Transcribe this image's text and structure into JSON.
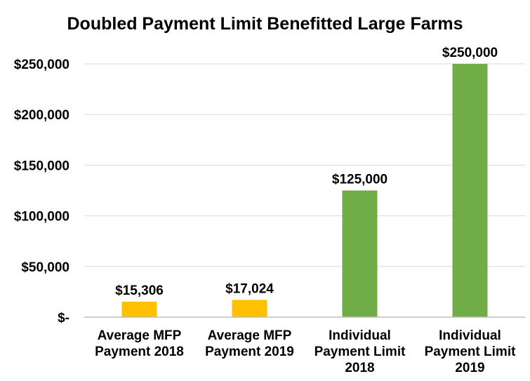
{
  "chart_data": {
    "type": "bar",
    "title": "Doubled Payment Limit Benefitted Large Farms",
    "xlabel": "",
    "ylabel": "",
    "categories": [
      [
        "Average MFP",
        "Payment 2018"
      ],
      [
        "Average  MFP",
        "Payment 2019"
      ],
      [
        "Individual",
        "Payment Limit",
        "2018"
      ],
      [
        "Individual",
        "Payment Limit",
        "2019"
      ]
    ],
    "values": [
      15306,
      17024,
      125000,
      250000
    ],
    "data_labels": [
      "$15,306",
      "$17,024",
      "$125,000",
      "$250,000"
    ],
    "bar_colors": [
      "#FFC000",
      "#FFC000",
      "#70AD47",
      "#70AD47"
    ],
    "ylim": [
      0,
      250000
    ],
    "y_ticks": [
      0,
      50000,
      100000,
      150000,
      200000,
      250000
    ],
    "y_tick_labels": [
      "$-",
      "$50,000",
      "$100,000",
      "$150,000",
      "$200,000",
      "$250,000"
    ],
    "grid": true,
    "gridline_color": "#D9D9D9",
    "axis_color": "#BFBFBF",
    "legend": "none"
  }
}
